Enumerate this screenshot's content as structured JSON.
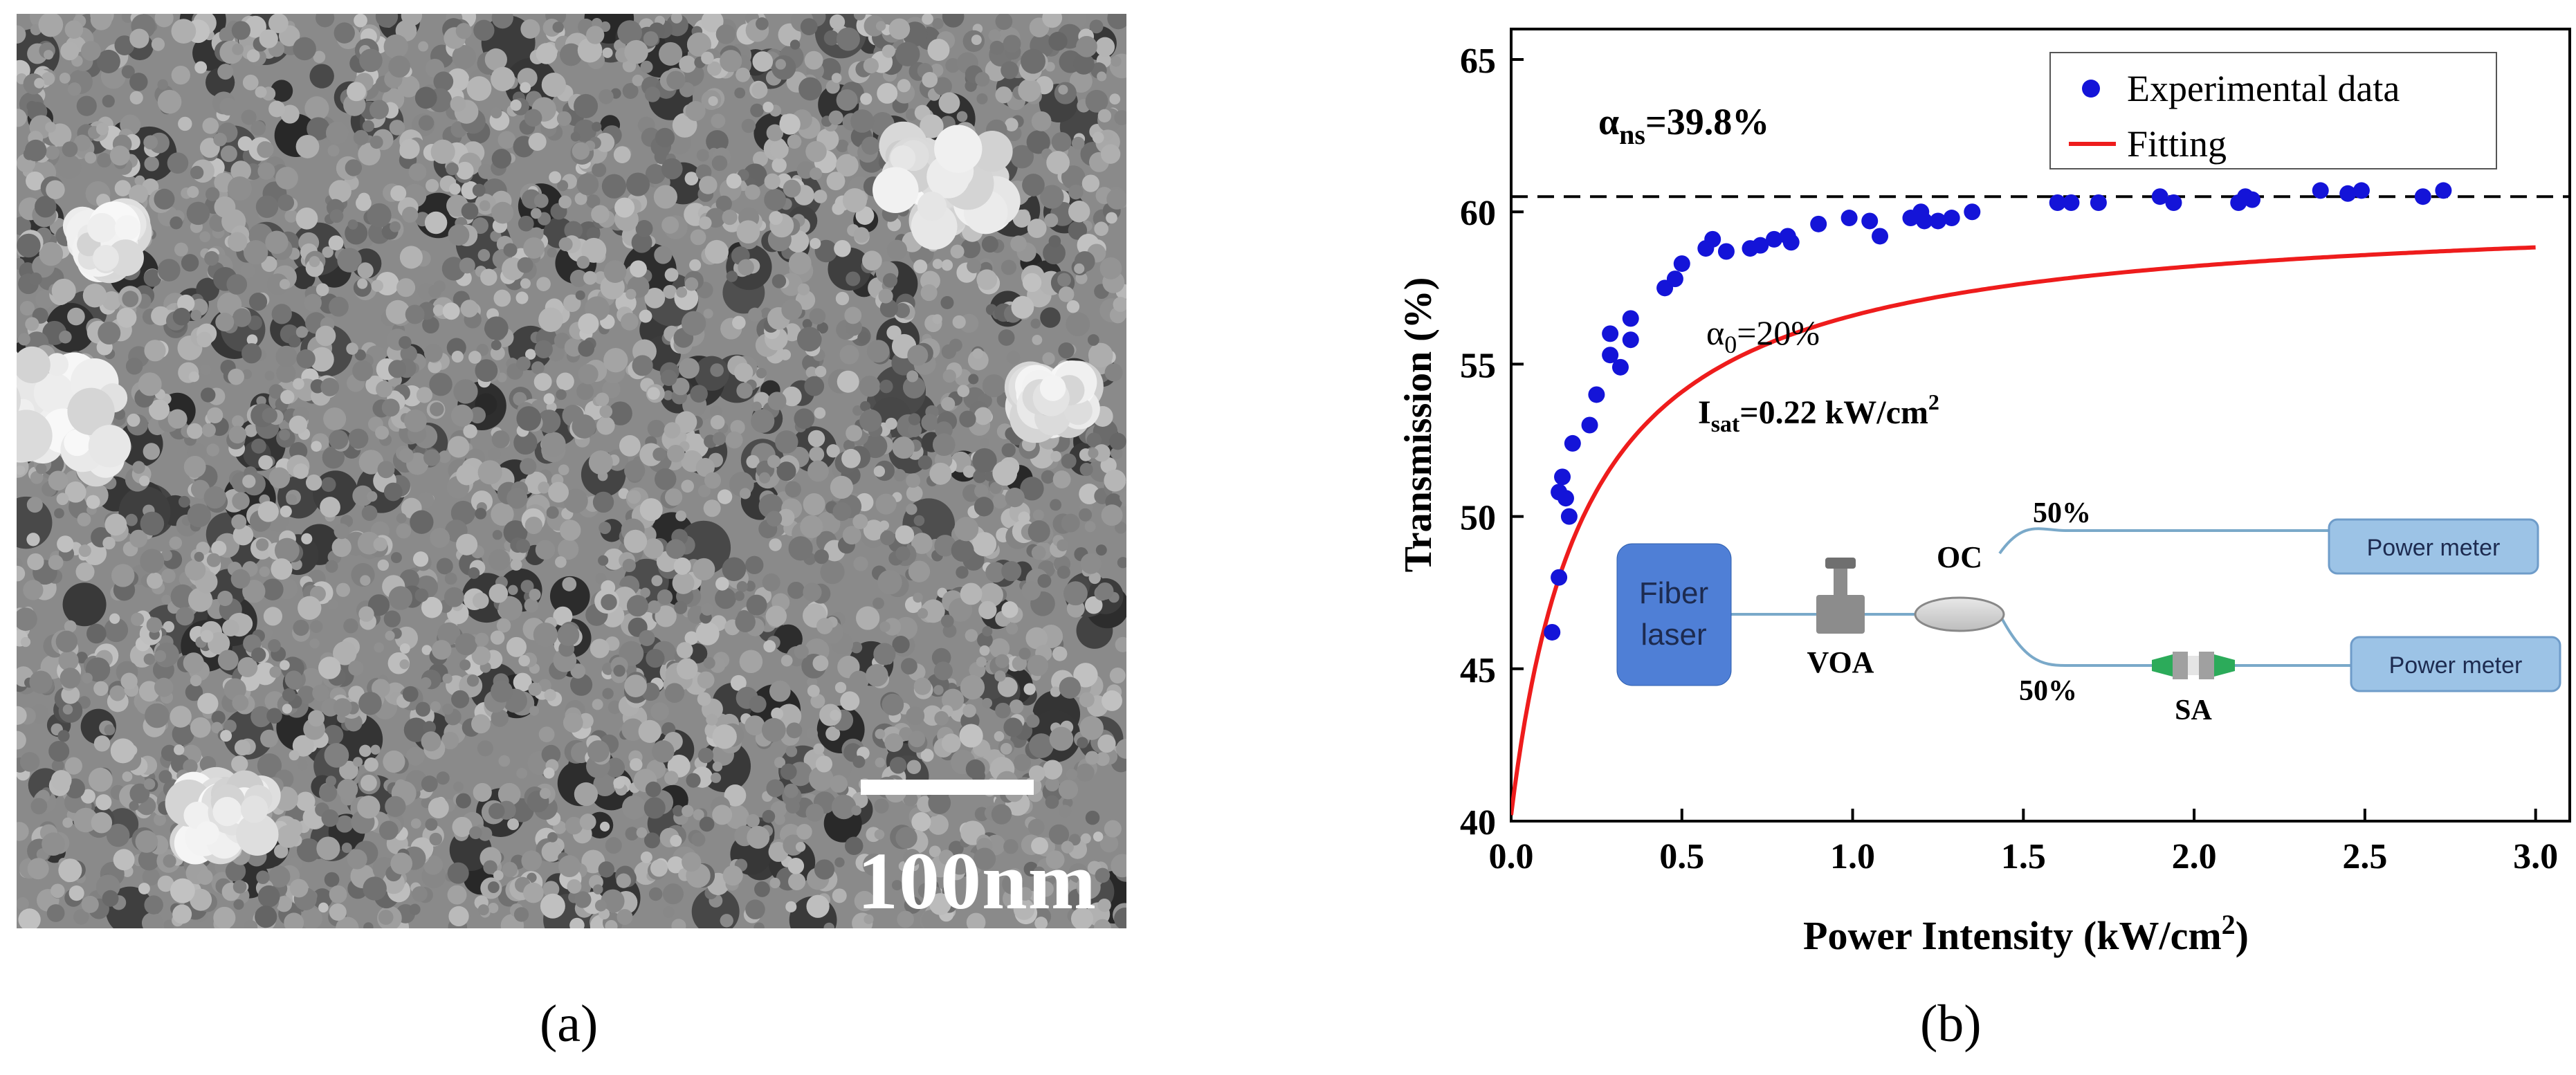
{
  "panel_a": {
    "scale_bar_label": "100nm",
    "caption": "(a)"
  },
  "panel_b": {
    "caption": "(b)",
    "annotations": {
      "alpha_ns_symbol": "α",
      "alpha_ns_sub": "ns",
      "alpha_ns_value": "=39.8%",
      "alpha_0_symbol": "α",
      "alpha_0_sub": "0",
      "alpha_0_value": "=20%",
      "isat_symbol": "I",
      "isat_sub": "sat",
      "isat_value": "=0.22 kW/cm",
      "isat_sup": "2"
    },
    "inset": {
      "fiber_laser_line1": "Fiber",
      "fiber_laser_line2": "laser",
      "voa": "VOA",
      "oc": "OC",
      "split_top": "50%",
      "split_bottom": "50%",
      "sa": "SA",
      "power_meter_top": "Power meter",
      "power_meter_bottom": "Power meter"
    },
    "colors": {
      "data_points": "#1414d8",
      "fit_line": "#ee1c1c",
      "inset_box": "#4f7fd6",
      "power_meter_box": "#9cc3e6"
    }
  },
  "chart_data": {
    "type": "scatter",
    "xlabel": "Power Intensity (kW/cm",
    "xlabel_sup": "2",
    "xlabel_end": ")",
    "ylabel": "Transmission (%)",
    "xlim": [
      0,
      3.1
    ],
    "ylim": [
      40,
      66
    ],
    "xticks": [
      0.0,
      0.5,
      1.0,
      1.5,
      2.0,
      2.5,
      3.0
    ],
    "xtick_labels": [
      "0.0",
      "0.5",
      "1.0",
      "1.5",
      "2.0",
      "2.5",
      "3.0"
    ],
    "yticks": [
      40,
      45,
      50,
      55,
      60,
      65
    ],
    "ytick_labels": [
      "40",
      "45",
      "50",
      "55",
      "60",
      "65"
    ],
    "legend_position": "top-right",
    "reference_line_y": 60.5,
    "series": [
      {
        "name": "Experimental data",
        "kind": "scatter",
        "points": [
          [
            0.12,
            46.2
          ],
          [
            0.14,
            48.0
          ],
          [
            0.14,
            50.8
          ],
          [
            0.15,
            51.3
          ],
          [
            0.16,
            50.6
          ],
          [
            0.17,
            50.0
          ],
          [
            0.18,
            52.4
          ],
          [
            0.23,
            53.0
          ],
          [
            0.25,
            54.0
          ],
          [
            0.29,
            55.3
          ],
          [
            0.29,
            56.0
          ],
          [
            0.32,
            54.9
          ],
          [
            0.35,
            56.5
          ],
          [
            0.35,
            55.8
          ],
          [
            0.45,
            57.5
          ],
          [
            0.48,
            57.8
          ],
          [
            0.5,
            58.3
          ],
          [
            0.57,
            58.8
          ],
          [
            0.59,
            59.1
          ],
          [
            0.63,
            58.7
          ],
          [
            0.7,
            58.8
          ],
          [
            0.73,
            58.9
          ],
          [
            0.77,
            59.1
          ],
          [
            0.81,
            59.2
          ],
          [
            0.82,
            59.0
          ],
          [
            0.9,
            59.6
          ],
          [
            0.99,
            59.8
          ],
          [
            1.05,
            59.7
          ],
          [
            1.08,
            59.2
          ],
          [
            1.17,
            59.8
          ],
          [
            1.2,
            60.0
          ],
          [
            1.21,
            59.7
          ],
          [
            1.25,
            59.7
          ],
          [
            1.29,
            59.8
          ],
          [
            1.35,
            60.0
          ],
          [
            1.6,
            60.3
          ],
          [
            1.64,
            60.3
          ],
          [
            1.72,
            60.3
          ],
          [
            1.9,
            60.5
          ],
          [
            1.94,
            60.3
          ],
          [
            2.13,
            60.3
          ],
          [
            2.15,
            60.5
          ],
          [
            2.17,
            60.4
          ],
          [
            2.37,
            60.7
          ],
          [
            2.45,
            60.6
          ],
          [
            2.49,
            60.7
          ],
          [
            2.67,
            60.5
          ],
          [
            2.73,
            60.7
          ]
        ]
      },
      {
        "name": "Fitting",
        "kind": "line",
        "model": "saturable_absorption",
        "alpha_ns": 39.8,
        "alpha_0": 20,
        "i_sat": 0.22,
        "x_range": [
          0,
          3.0
        ]
      }
    ]
  }
}
